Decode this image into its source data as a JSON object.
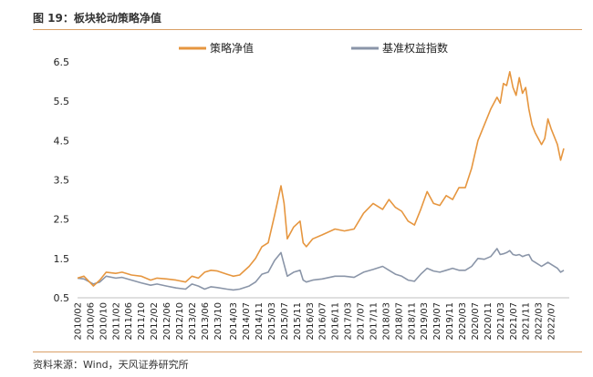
{
  "figure": {
    "title": "图 19：板块轮动策略净值",
    "source": "资料来源：Wind，天风证券研究所"
  },
  "colors": {
    "strategy": "#E6963F",
    "benchmark": "#8A95A8",
    "rule": "#D9A066"
  },
  "chart_data": {
    "type": "line",
    "ylim": [
      0.5,
      6.5
    ],
    "yticks": [
      0.5,
      1.5,
      2.5,
      3.5,
      4.5,
      5.5,
      6.5
    ],
    "x_tick_labels": [
      "2010/02",
      "2010/06",
      "2010/10",
      "2011/02",
      "2011/06",
      "2011/10",
      "2012/02",
      "2012/06",
      "2012/10",
      "2013/02",
      "2013/06",
      "2013/10",
      "2014/03",
      "2014/07",
      "2014/11",
      "2015/03",
      "2015/07",
      "2015/11",
      "2016/03",
      "2016/07",
      "2016/11",
      "2017/03",
      "2017/07",
      "2017/11",
      "2018/03",
      "2018/07",
      "2018/11",
      "2019/03",
      "2019/07",
      "2019/11",
      "2020/03",
      "2020/07",
      "2020/11",
      "2021/03",
      "2021/07",
      "2021/11",
      "2022/03",
      "2022/07"
    ],
    "legend": "top",
    "grid": false,
    "series": [
      {
        "name": "策略净值",
        "color": "#E6963F",
        "points": [
          [
            "2010/02",
            1.0
          ],
          [
            "2010/04",
            1.05
          ],
          [
            "2010/07",
            0.8
          ],
          [
            "2010/09",
            0.95
          ],
          [
            "2010/11",
            1.15
          ],
          [
            "2011/02",
            1.12
          ],
          [
            "2011/04",
            1.15
          ],
          [
            "2011/07",
            1.08
          ],
          [
            "2011/10",
            1.05
          ],
          [
            "2012/01",
            0.95
          ],
          [
            "2012/03",
            1.0
          ],
          [
            "2012/06",
            0.98
          ],
          [
            "2012/09",
            0.95
          ],
          [
            "2012/12",
            0.9
          ],
          [
            "2013/02",
            1.05
          ],
          [
            "2013/04",
            1.0
          ],
          [
            "2013/06",
            1.15
          ],
          [
            "2013/08",
            1.2
          ],
          [
            "2013/10",
            1.18
          ],
          [
            "2014/01",
            1.1
          ],
          [
            "2014/03",
            1.05
          ],
          [
            "2014/05",
            1.08
          ],
          [
            "2014/08",
            1.3
          ],
          [
            "2014/10",
            1.5
          ],
          [
            "2014/12",
            1.8
          ],
          [
            "2015/02",
            1.9
          ],
          [
            "2015/04",
            2.6
          ],
          [
            "2015/06",
            3.35
          ],
          [
            "2015/07",
            2.9
          ],
          [
            "2015/08",
            2.0
          ],
          [
            "2015/10",
            2.3
          ],
          [
            "2015/12",
            2.45
          ],
          [
            "2016/01",
            1.9
          ],
          [
            "2016/02",
            1.8
          ],
          [
            "2016/04",
            2.0
          ],
          [
            "2016/07",
            2.1
          ],
          [
            "2016/11",
            2.25
          ],
          [
            "2017/02",
            2.2
          ],
          [
            "2017/05",
            2.25
          ],
          [
            "2017/08",
            2.65
          ],
          [
            "2017/11",
            2.9
          ],
          [
            "2018/02",
            2.75
          ],
          [
            "2018/04",
            3.0
          ],
          [
            "2018/06",
            2.8
          ],
          [
            "2018/08",
            2.7
          ],
          [
            "2018/10",
            2.45
          ],
          [
            "2018/12",
            2.35
          ],
          [
            "2019/02",
            2.75
          ],
          [
            "2019/04",
            3.2
          ],
          [
            "2019/06",
            2.9
          ],
          [
            "2019/08",
            2.85
          ],
          [
            "2019/10",
            3.1
          ],
          [
            "2019/12",
            3.0
          ],
          [
            "2020/02",
            3.3
          ],
          [
            "2020/04",
            3.3
          ],
          [
            "2020/06",
            3.8
          ],
          [
            "2020/08",
            4.5
          ],
          [
            "2020/10",
            4.9
          ],
          [
            "2020/12",
            5.3
          ],
          [
            "2021/02",
            5.6
          ],
          [
            "2021/03",
            5.45
          ],
          [
            "2021/04",
            5.95
          ],
          [
            "2021/05",
            5.9
          ],
          [
            "2021/06",
            6.25
          ],
          [
            "2021/07",
            5.85
          ],
          [
            "2021/08",
            5.65
          ],
          [
            "2021/09",
            6.1
          ],
          [
            "2021/10",
            5.7
          ],
          [
            "2021/11",
            5.85
          ],
          [
            "2021/12",
            5.3
          ],
          [
            "2022/01",
            4.9
          ],
          [
            "2022/02",
            4.7
          ],
          [
            "2022/04",
            4.4
          ],
          [
            "2022/05",
            4.55
          ],
          [
            "2022/06",
            5.05
          ],
          [
            "2022/07",
            4.8
          ],
          [
            "2022/09",
            4.4
          ],
          [
            "2022/10",
            4.0
          ],
          [
            "2022/11",
            4.3
          ]
        ]
      },
      {
        "name": "基准权益指数",
        "color": "#8A95A8",
        "points": [
          [
            "2010/02",
            1.0
          ],
          [
            "2010/04",
            0.98
          ],
          [
            "2010/07",
            0.85
          ],
          [
            "2010/09",
            0.9
          ],
          [
            "2010/11",
            1.05
          ],
          [
            "2011/02",
            1.0
          ],
          [
            "2011/04",
            1.02
          ],
          [
            "2011/07",
            0.95
          ],
          [
            "2011/10",
            0.88
          ],
          [
            "2012/01",
            0.82
          ],
          [
            "2012/03",
            0.85
          ],
          [
            "2012/06",
            0.8
          ],
          [
            "2012/09",
            0.75
          ],
          [
            "2012/12",
            0.72
          ],
          [
            "2013/02",
            0.85
          ],
          [
            "2013/04",
            0.8
          ],
          [
            "2013/06",
            0.72
          ],
          [
            "2013/08",
            0.78
          ],
          [
            "2013/10",
            0.76
          ],
          [
            "2014/01",
            0.72
          ],
          [
            "2014/03",
            0.7
          ],
          [
            "2014/05",
            0.72
          ],
          [
            "2014/08",
            0.8
          ],
          [
            "2014/10",
            0.9
          ],
          [
            "2014/12",
            1.1
          ],
          [
            "2015/02",
            1.15
          ],
          [
            "2015/04",
            1.45
          ],
          [
            "2015/06",
            1.65
          ],
          [
            "2015/07",
            1.35
          ],
          [
            "2015/08",
            1.05
          ],
          [
            "2015/10",
            1.15
          ],
          [
            "2015/12",
            1.2
          ],
          [
            "2016/01",
            0.95
          ],
          [
            "2016/02",
            0.9
          ],
          [
            "2016/04",
            0.95
          ],
          [
            "2016/07",
            0.98
          ],
          [
            "2016/11",
            1.05
          ],
          [
            "2017/02",
            1.05
          ],
          [
            "2017/05",
            1.02
          ],
          [
            "2017/08",
            1.15
          ],
          [
            "2017/11",
            1.22
          ],
          [
            "2018/02",
            1.3
          ],
          [
            "2018/04",
            1.2
          ],
          [
            "2018/06",
            1.1
          ],
          [
            "2018/08",
            1.05
          ],
          [
            "2018/10",
            0.95
          ],
          [
            "2018/12",
            0.92
          ],
          [
            "2019/02",
            1.1
          ],
          [
            "2019/04",
            1.25
          ],
          [
            "2019/06",
            1.18
          ],
          [
            "2019/08",
            1.15
          ],
          [
            "2019/10",
            1.2
          ],
          [
            "2019/12",
            1.25
          ],
          [
            "2020/02",
            1.2
          ],
          [
            "2020/04",
            1.2
          ],
          [
            "2020/06",
            1.3
          ],
          [
            "2020/08",
            1.5
          ],
          [
            "2020/10",
            1.48
          ],
          [
            "2020/12",
            1.55
          ],
          [
            "2021/02",
            1.75
          ],
          [
            "2021/03",
            1.6
          ],
          [
            "2021/04",
            1.62
          ],
          [
            "2021/05",
            1.65
          ],
          [
            "2021/06",
            1.7
          ],
          [
            "2021/07",
            1.6
          ],
          [
            "2021/08",
            1.58
          ],
          [
            "2021/09",
            1.6
          ],
          [
            "2021/10",
            1.55
          ],
          [
            "2021/11",
            1.58
          ],
          [
            "2021/12",
            1.6
          ],
          [
            "2022/01",
            1.45
          ],
          [
            "2022/02",
            1.4
          ],
          [
            "2022/04",
            1.3
          ],
          [
            "2022/05",
            1.35
          ],
          [
            "2022/06",
            1.4
          ],
          [
            "2022/07",
            1.35
          ],
          [
            "2022/09",
            1.25
          ],
          [
            "2022/10",
            1.15
          ],
          [
            "2022/11",
            1.2
          ]
        ]
      }
    ]
  }
}
